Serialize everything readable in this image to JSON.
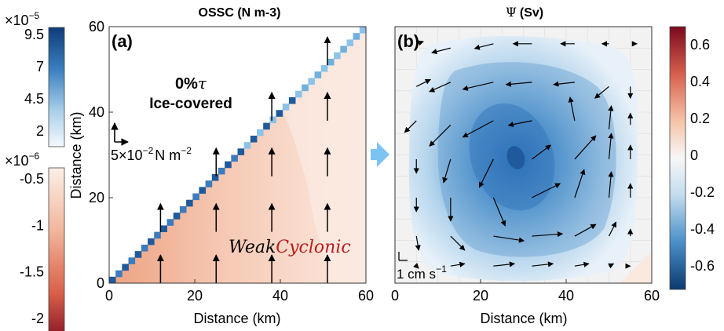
{
  "colors": {
    "ossc_fill_dark": "#eda282",
    "ossc_fill_light": "#fae6dc",
    "wall_dark": "#1f5a9c",
    "wall_light": "#6fb0df",
    "psi_center": "#1f63b0",
    "psi_edge": "#deebf6",
    "arrow_blue": "#7cc3f2",
    "cyclonic_red": "#b41e1e"
  },
  "left_colorbars": {
    "top": {
      "exponent_label": "×10",
      "exponent_power": "−5",
      "ticks": [
        "9.5",
        "7",
        "4.5",
        "2"
      ]
    },
    "bottom": {
      "exponent_label": "×10",
      "exponent_power": "−6",
      "ticks": [
        "-0.5",
        "-1",
        "-1.5",
        "-2"
      ]
    }
  },
  "right_colorbar": {
    "ticks": [
      "0.6",
      "0.4",
      "0.2",
      "0",
      "-0.2",
      "-0.4",
      "-0.6"
    ]
  },
  "panel_a": {
    "title": "OSSC (N m-3)",
    "panel_label": "(a)",
    "text_line1": "0%",
    "text_tau": "τ",
    "text_line2": "Ice-covered",
    "scale_label_pre": "5",
    "scale_label_times": "×10",
    "scale_label_pow": "−2",
    "scale_label_unit": "N m",
    "scale_label_unit_pow": "−2",
    "annotation_weak": "Weak",
    "annotation_cyclonic": "Cyclonic",
    "xlabel": "Distance (km)",
    "ylabel": "Distance (km)",
    "xticks": [
      "0",
      "20",
      "40",
      "60"
    ],
    "yticks": [
      "0",
      "20",
      "40",
      "60"
    ]
  },
  "panel_b": {
    "title_symbol": "Ψ",
    "title_unit": "(Sv)",
    "panel_label": "(b)",
    "scale_label_pre": "1 cm s",
    "scale_label_pow": "−1",
    "xlabel": "Distance (km)",
    "xticks": [
      "0",
      "20",
      "40",
      "60"
    ]
  },
  "chart_data": [
    {
      "type": "heatmap",
      "title": "OSSC (N m-3)",
      "xlabel": "Distance (km)",
      "ylabel": "Distance (km)",
      "xlim": [
        0,
        60
      ],
      "ylim": [
        0,
        60
      ],
      "annotations": [
        "(a)",
        "0%τ",
        "Ice-covered",
        "WeakCyclonic"
      ],
      "wall_ossc_range": [
        2e-05,
        9.5e-05
      ],
      "interior_ossc_range": [
        -2e-06,
        -5e-07
      ],
      "stress_arrows": [
        {
          "x": 12,
          "y": 0,
          "u": 0,
          "v": 1
        },
        {
          "x": 12,
          "y": 12,
          "u": 0,
          "v": 1
        },
        {
          "x": 25,
          "y": 0,
          "u": 0,
          "v": 1
        },
        {
          "x": 25,
          "y": 12,
          "u": 0,
          "v": 1
        },
        {
          "x": 25,
          "y": 25,
          "u": 0,
          "v": 1
        },
        {
          "x": 38,
          "y": 0,
          "u": 0,
          "v": 1
        },
        {
          "x": 38,
          "y": 12,
          "u": 0,
          "v": 1
        },
        {
          "x": 38,
          "y": 25,
          "u": 0,
          "v": 1
        },
        {
          "x": 38,
          "y": 38,
          "u": 0,
          "v": 1
        },
        {
          "x": 51,
          "y": 0,
          "u": 0,
          "v": 1
        },
        {
          "x": 51,
          "y": 12,
          "u": 0,
          "v": 1
        },
        {
          "x": 51,
          "y": 25,
          "u": 0,
          "v": 1
        },
        {
          "x": 51,
          "y": 38,
          "u": 0,
          "v": 1
        },
        {
          "x": 51,
          "y": 51,
          "u": 0,
          "v": 1
        }
      ]
    },
    {
      "type": "heatmap",
      "title": "Ψ (Sv)",
      "xlabel": "Distance (km)",
      "xlim": [
        0,
        60
      ],
      "ylim": [
        0,
        60
      ],
      "colorbar_range": [
        -0.7,
        0.7
      ],
      "psi_min": -0.65,
      "psi_min_location": {
        "x": 28,
        "y": 29
      },
      "annotations": [
        "(b)"
      ],
      "velocity_vectors": [
        {
          "x": 5,
          "y": 56,
          "u": 0.3,
          "v": 0.1
        },
        {
          "x": 13,
          "y": 55,
          "u": -0.8,
          "v": -0.2
        },
        {
          "x": 23,
          "y": 56,
          "u": -0.8,
          "v": -0.2
        },
        {
          "x": 32,
          "y": 56,
          "u": -0.8,
          "v": 0.0
        },
        {
          "x": 42,
          "y": 56,
          "u": -0.6,
          "v": 0.0
        },
        {
          "x": 50,
          "y": 56,
          "u": -0.3,
          "v": 0.0
        },
        {
          "x": 56,
          "y": 56,
          "u": 0.1,
          "v": 0.0
        },
        {
          "x": 5,
          "y": 46,
          "u": 0.6,
          "v": 0.3
        },
        {
          "x": 13,
          "y": 47,
          "u": -0.9,
          "v": -0.4
        },
        {
          "x": 23,
          "y": 47,
          "u": -1.3,
          "v": -0.3
        },
        {
          "x": 32,
          "y": 47,
          "u": -1.1,
          "v": -0.1
        },
        {
          "x": 42,
          "y": 47,
          "u": -0.9,
          "v": -0.1
        },
        {
          "x": 50,
          "y": 46,
          "u": -0.6,
          "v": -0.5
        },
        {
          "x": 55,
          "y": 46,
          "u": 0.0,
          "v": -0.5
        },
        {
          "x": 5,
          "y": 38,
          "u": -0.5,
          "v": -0.5
        },
        {
          "x": 13,
          "y": 37,
          "u": -0.9,
          "v": -0.9
        },
        {
          "x": 23,
          "y": 38,
          "u": -1.3,
          "v": -0.7
        },
        {
          "x": 32,
          "y": 38,
          "u": -1.0,
          "v": -0.2
        },
        {
          "x": 42,
          "y": 38,
          "u": -0.2,
          "v": 1.0
        },
        {
          "x": 50,
          "y": 36,
          "u": 0.1,
          "v": 1.0
        },
        {
          "x": 55,
          "y": 37,
          "u": 0.0,
          "v": 0.5
        },
        {
          "x": 5,
          "y": 29,
          "u": 0.0,
          "v": -0.6
        },
        {
          "x": 13,
          "y": 29,
          "u": -0.3,
          "v": -1.0
        },
        {
          "x": 23,
          "y": 29,
          "u": -0.6,
          "v": -1.2
        },
        {
          "x": 32,
          "y": 29,
          "u": 0.8,
          "v": 0.6
        },
        {
          "x": 42,
          "y": 29,
          "u": 0.9,
          "v": 1.0
        },
        {
          "x": 50,
          "y": 29,
          "u": 0.1,
          "v": 1.1
        },
        {
          "x": 55,
          "y": 29,
          "u": 0.0,
          "v": 0.6
        },
        {
          "x": 5,
          "y": 20,
          "u": 0.0,
          "v": -0.6
        },
        {
          "x": 13,
          "y": 20,
          "u": 0.0,
          "v": -1.0
        },
        {
          "x": 23,
          "y": 20,
          "u": 0.5,
          "v": -1.2
        },
        {
          "x": 32,
          "y": 20,
          "u": 1.2,
          "v": 0.6
        },
        {
          "x": 42,
          "y": 20,
          "u": 0.4,
          "v": 1.2
        },
        {
          "x": 50,
          "y": 20,
          "u": 0.1,
          "v": 1.1
        },
        {
          "x": 55,
          "y": 20,
          "u": 0.0,
          "v": 0.6
        },
        {
          "x": 5,
          "y": 11,
          "u": 0.1,
          "v": -0.6
        },
        {
          "x": 13,
          "y": 11,
          "u": 0.6,
          "v": -0.6
        },
        {
          "x": 23,
          "y": 11,
          "u": 1.3,
          "v": -0.2
        },
        {
          "x": 32,
          "y": 11,
          "u": 1.3,
          "v": 0.1
        },
        {
          "x": 42,
          "y": 11,
          "u": 0.9,
          "v": 0.5
        },
        {
          "x": 50,
          "y": 11,
          "u": 0.3,
          "v": 0.6
        },
        {
          "x": 55,
          "y": 11,
          "u": 0.0,
          "v": 0.3
        },
        {
          "x": 5,
          "y": 4,
          "u": 0.1,
          "v": -0.1
        },
        {
          "x": 13,
          "y": 4,
          "u": 0.6,
          "v": 0.1
        },
        {
          "x": 23,
          "y": 4,
          "u": 0.9,
          "v": 0.1
        },
        {
          "x": 32,
          "y": 4,
          "u": 0.9,
          "v": 0.1
        },
        {
          "x": 42,
          "y": 4,
          "u": 0.6,
          "v": 0.1
        },
        {
          "x": 50,
          "y": 4,
          "u": 0.2,
          "v": 0.1
        },
        {
          "x": 55,
          "y": 4,
          "u": 0.0,
          "v": 0.0
        }
      ]
    }
  ]
}
